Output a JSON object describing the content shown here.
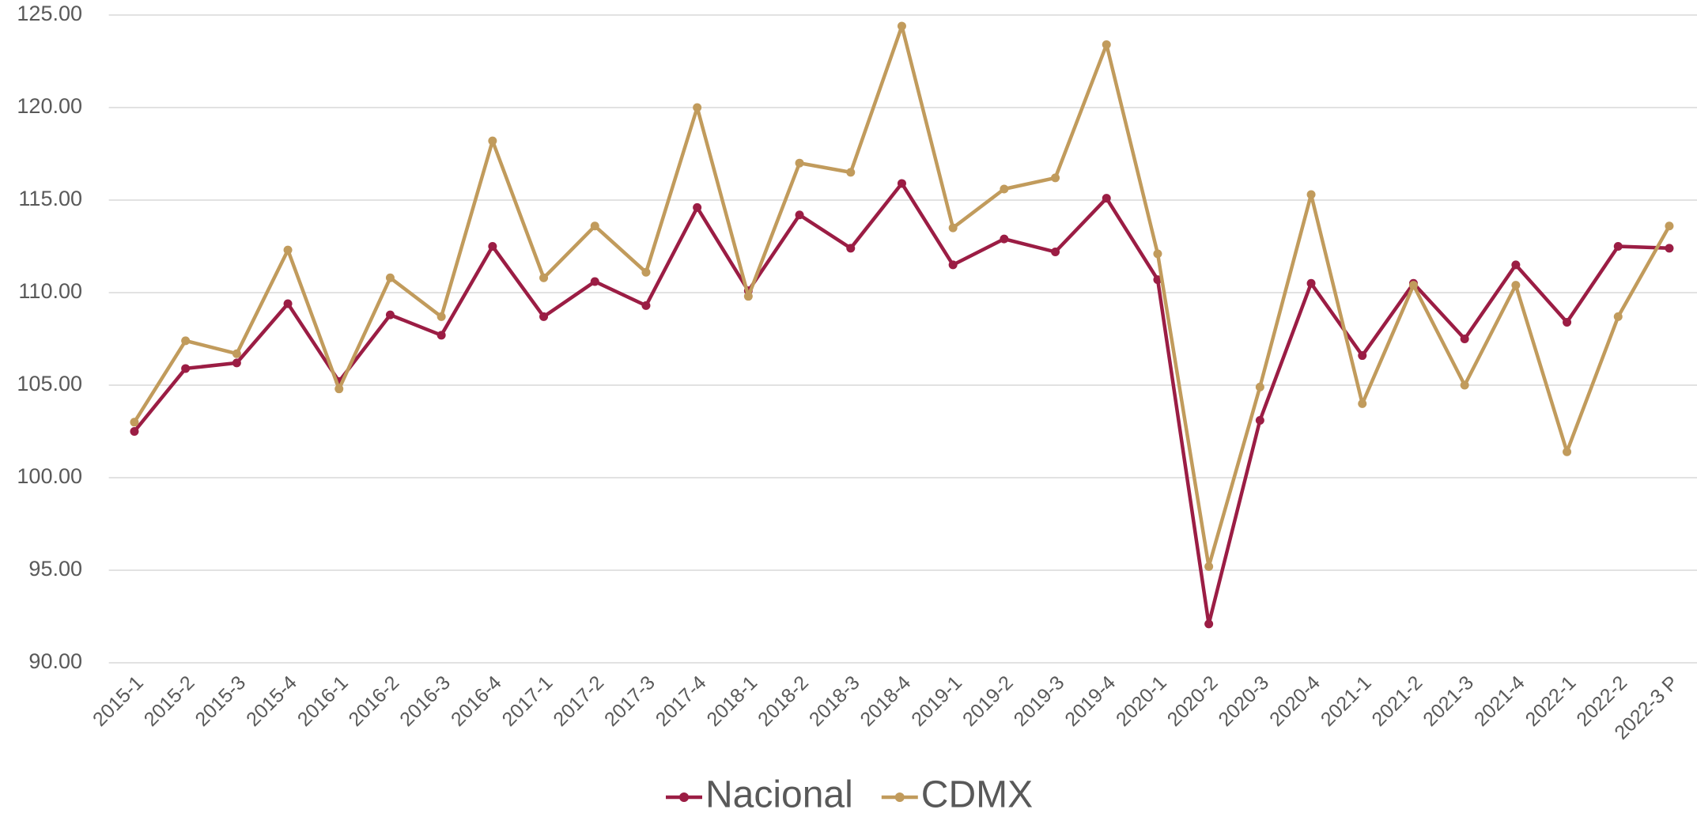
{
  "chart_data": {
    "type": "line",
    "categories": [
      "2015-1",
      "2015-2",
      "2015-3",
      "2015-4",
      "2016-1",
      "2016-2",
      "2016-3",
      "2016-4",
      "2017-1",
      "2017-2",
      "2017-3",
      "2017-4",
      "2018-1",
      "2018-2",
      "2018-3",
      "2018-4",
      "2019-1",
      "2019-2",
      "2019-3",
      "2019-4",
      "2020-1",
      "2020-2",
      "2020-3",
      "2020-4",
      "2021-1",
      "2021-2",
      "2021-3",
      "2021-4",
      "2022-1",
      "2022-2",
      "2022-3 P"
    ],
    "series": [
      {
        "name": "Nacional",
        "color": "#9b1d44",
        "values": [
          102.5,
          105.9,
          106.2,
          109.4,
          105.2,
          108.8,
          107.7,
          112.5,
          108.7,
          110.6,
          109.3,
          114.6,
          110.1,
          114.2,
          112.4,
          115.9,
          111.5,
          112.9,
          112.2,
          115.1,
          110.7,
          92.1,
          103.1,
          110.5,
          106.6,
          110.5,
          107.5,
          111.5,
          108.4,
          112.5,
          112.4
        ]
      },
      {
        "name": "CDMX",
        "color": "#c19b5c",
        "values": [
          103.0,
          107.4,
          106.7,
          112.3,
          104.8,
          110.8,
          108.7,
          118.2,
          110.8,
          113.6,
          111.1,
          120.0,
          109.8,
          117.0,
          116.5,
          124.4,
          113.5,
          115.6,
          116.2,
          123.4,
          112.1,
          95.2,
          104.9,
          115.3,
          104.0,
          110.4,
          105.0,
          110.4,
          101.4,
          108.7,
          113.6
        ]
      }
    ],
    "ylim": [
      90,
      125
    ],
    "yticks": [
      {
        "value": 90,
        "label": "90.00"
      },
      {
        "value": 95,
        "label": "95.00"
      },
      {
        "value": 100,
        "label": "100.00"
      },
      {
        "value": 105,
        "label": "105.00"
      },
      {
        "value": 110,
        "label": "110.00"
      },
      {
        "value": 115,
        "label": "115.00"
      },
      {
        "value": 120,
        "label": "120.00"
      },
      {
        "value": 125,
        "label": "125.00"
      }
    ],
    "grid": true,
    "legend": "bottom"
  }
}
